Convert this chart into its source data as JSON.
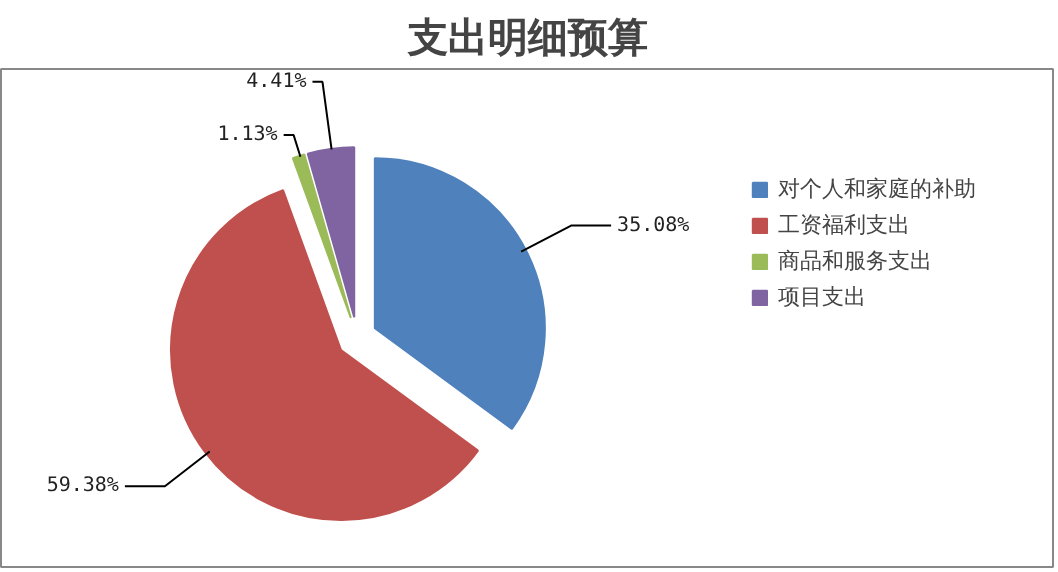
{
  "chart_data": {
    "type": "pie",
    "title": "支出明细预算",
    "categories": [
      "对个人和家庭的补助",
      "工资福利支出",
      "商品和服务支出",
      "项目支出"
    ],
    "values": [
      35.08,
      59.38,
      1.13,
      4.41
    ],
    "colors": [
      "#4f81bd",
      "#c0504d",
      "#9bbb59",
      "#8064a2"
    ],
    "value_labels": [
      "35.08%",
      "59.38%",
      "1.13%",
      "4.41%"
    ],
    "legend": "right"
  }
}
